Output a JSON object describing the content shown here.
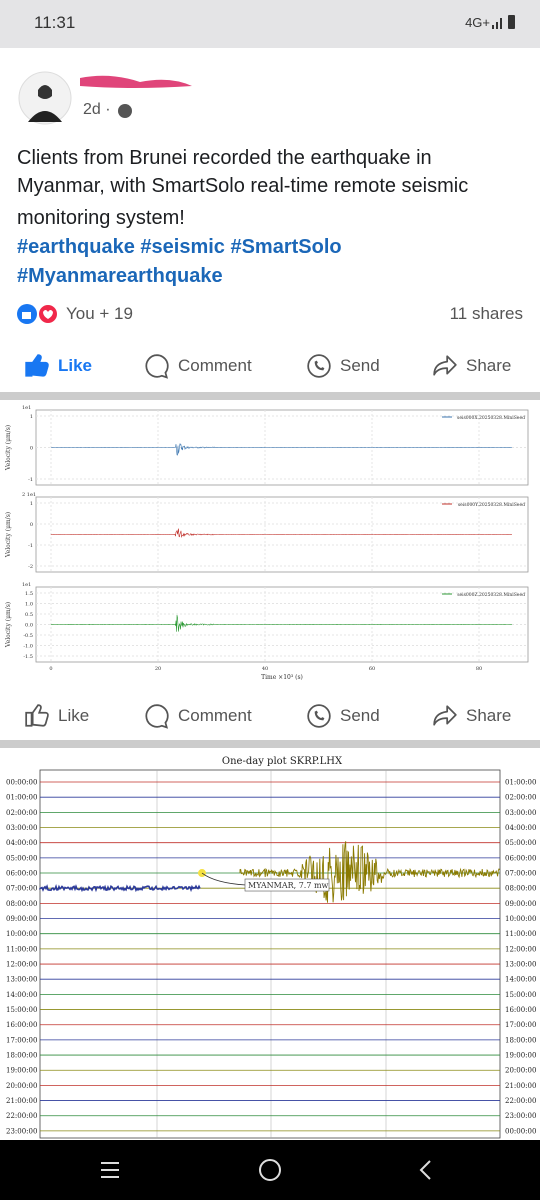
{
  "status_bar": {
    "time": "11:31",
    "network": "4G+"
  },
  "post": {
    "timestamp": "2d ·",
    "text_lines": [
      "Clients from Brunei recorded the earthquake in",
      "Myanmar, with SmartSolo real-time remote seismic",
      "monitoring system!"
    ],
    "hashtag_lines": [
      "#earthquake #seismic #SmartSolo",
      "#Myanmarearthquake"
    ],
    "reactions": "You + 19",
    "shares": "11 shares"
  },
  "actions": [
    "Like",
    "Comment",
    "Send",
    "Share"
  ],
  "figure1": {
    "panels": [
      {
        "ylabel": "Velocity (μm/s)",
        "exponent": "1e1",
        "yticks": [
          "1",
          "0",
          "-1"
        ],
        "legend": "seis000X.20250328.MiniSeed"
      },
      {
        "ylabel": "Velocity (μm/s)",
        "exponent": "2 1e1",
        "yticks": [
          "1",
          "0",
          "-1",
          "-2"
        ],
        "legend": "seis000Y.20250328.MiniSeed"
      },
      {
        "ylabel": "Velocity (μm/s)",
        "exponent": "1e1",
        "yticks": [
          "1.5",
          "1.0",
          "0.5",
          "0.0",
          "-0.5",
          "-1.0",
          "-1.5"
        ],
        "legend": "seis000Z.20250328.MiniSeed"
      }
    ],
    "xticks": [
      "0",
      "20",
      "40",
      "60",
      "80"
    ],
    "xlabel": "Time ×10³ (s)"
  },
  "figure2": {
    "title": "One-day plot SKRP.LHX",
    "left_times": [
      "00:00:00",
      "01:00:00",
      "02:00:00",
      "03:00:00",
      "04:00:00",
      "05:00:00",
      "06:00:00",
      "07:00:00",
      "08:00:00",
      "09:00:00",
      "10:00:00",
      "11:00:00",
      "12:00:00",
      "13:00:00",
      "14:00:00",
      "15:00:00",
      "16:00:00",
      "17:00:00",
      "18:00:00",
      "19:00:00",
      "20:00:00",
      "21:00:00",
      "22:00:00",
      "23:00:00"
    ],
    "right_times": [
      "01:00:00",
      "02:00:00",
      "03:00:00",
      "04:00:00",
      "05:00:00",
      "06:00:00",
      "07:00:00",
      "08:00:00",
      "09:00:00",
      "10:00:00",
      "11:00:00",
      "12:00:00",
      "13:00:00",
      "14:00:00",
      "15:00:00",
      "16:00:00",
      "17:00:00",
      "18:00:00",
      "19:00:00",
      "20:00:00",
      "21:00:00",
      "22:00:00",
      "23:00:00",
      "00:00:00"
    ],
    "annotation": "MYANMAR, 7.7 mw"
  }
}
